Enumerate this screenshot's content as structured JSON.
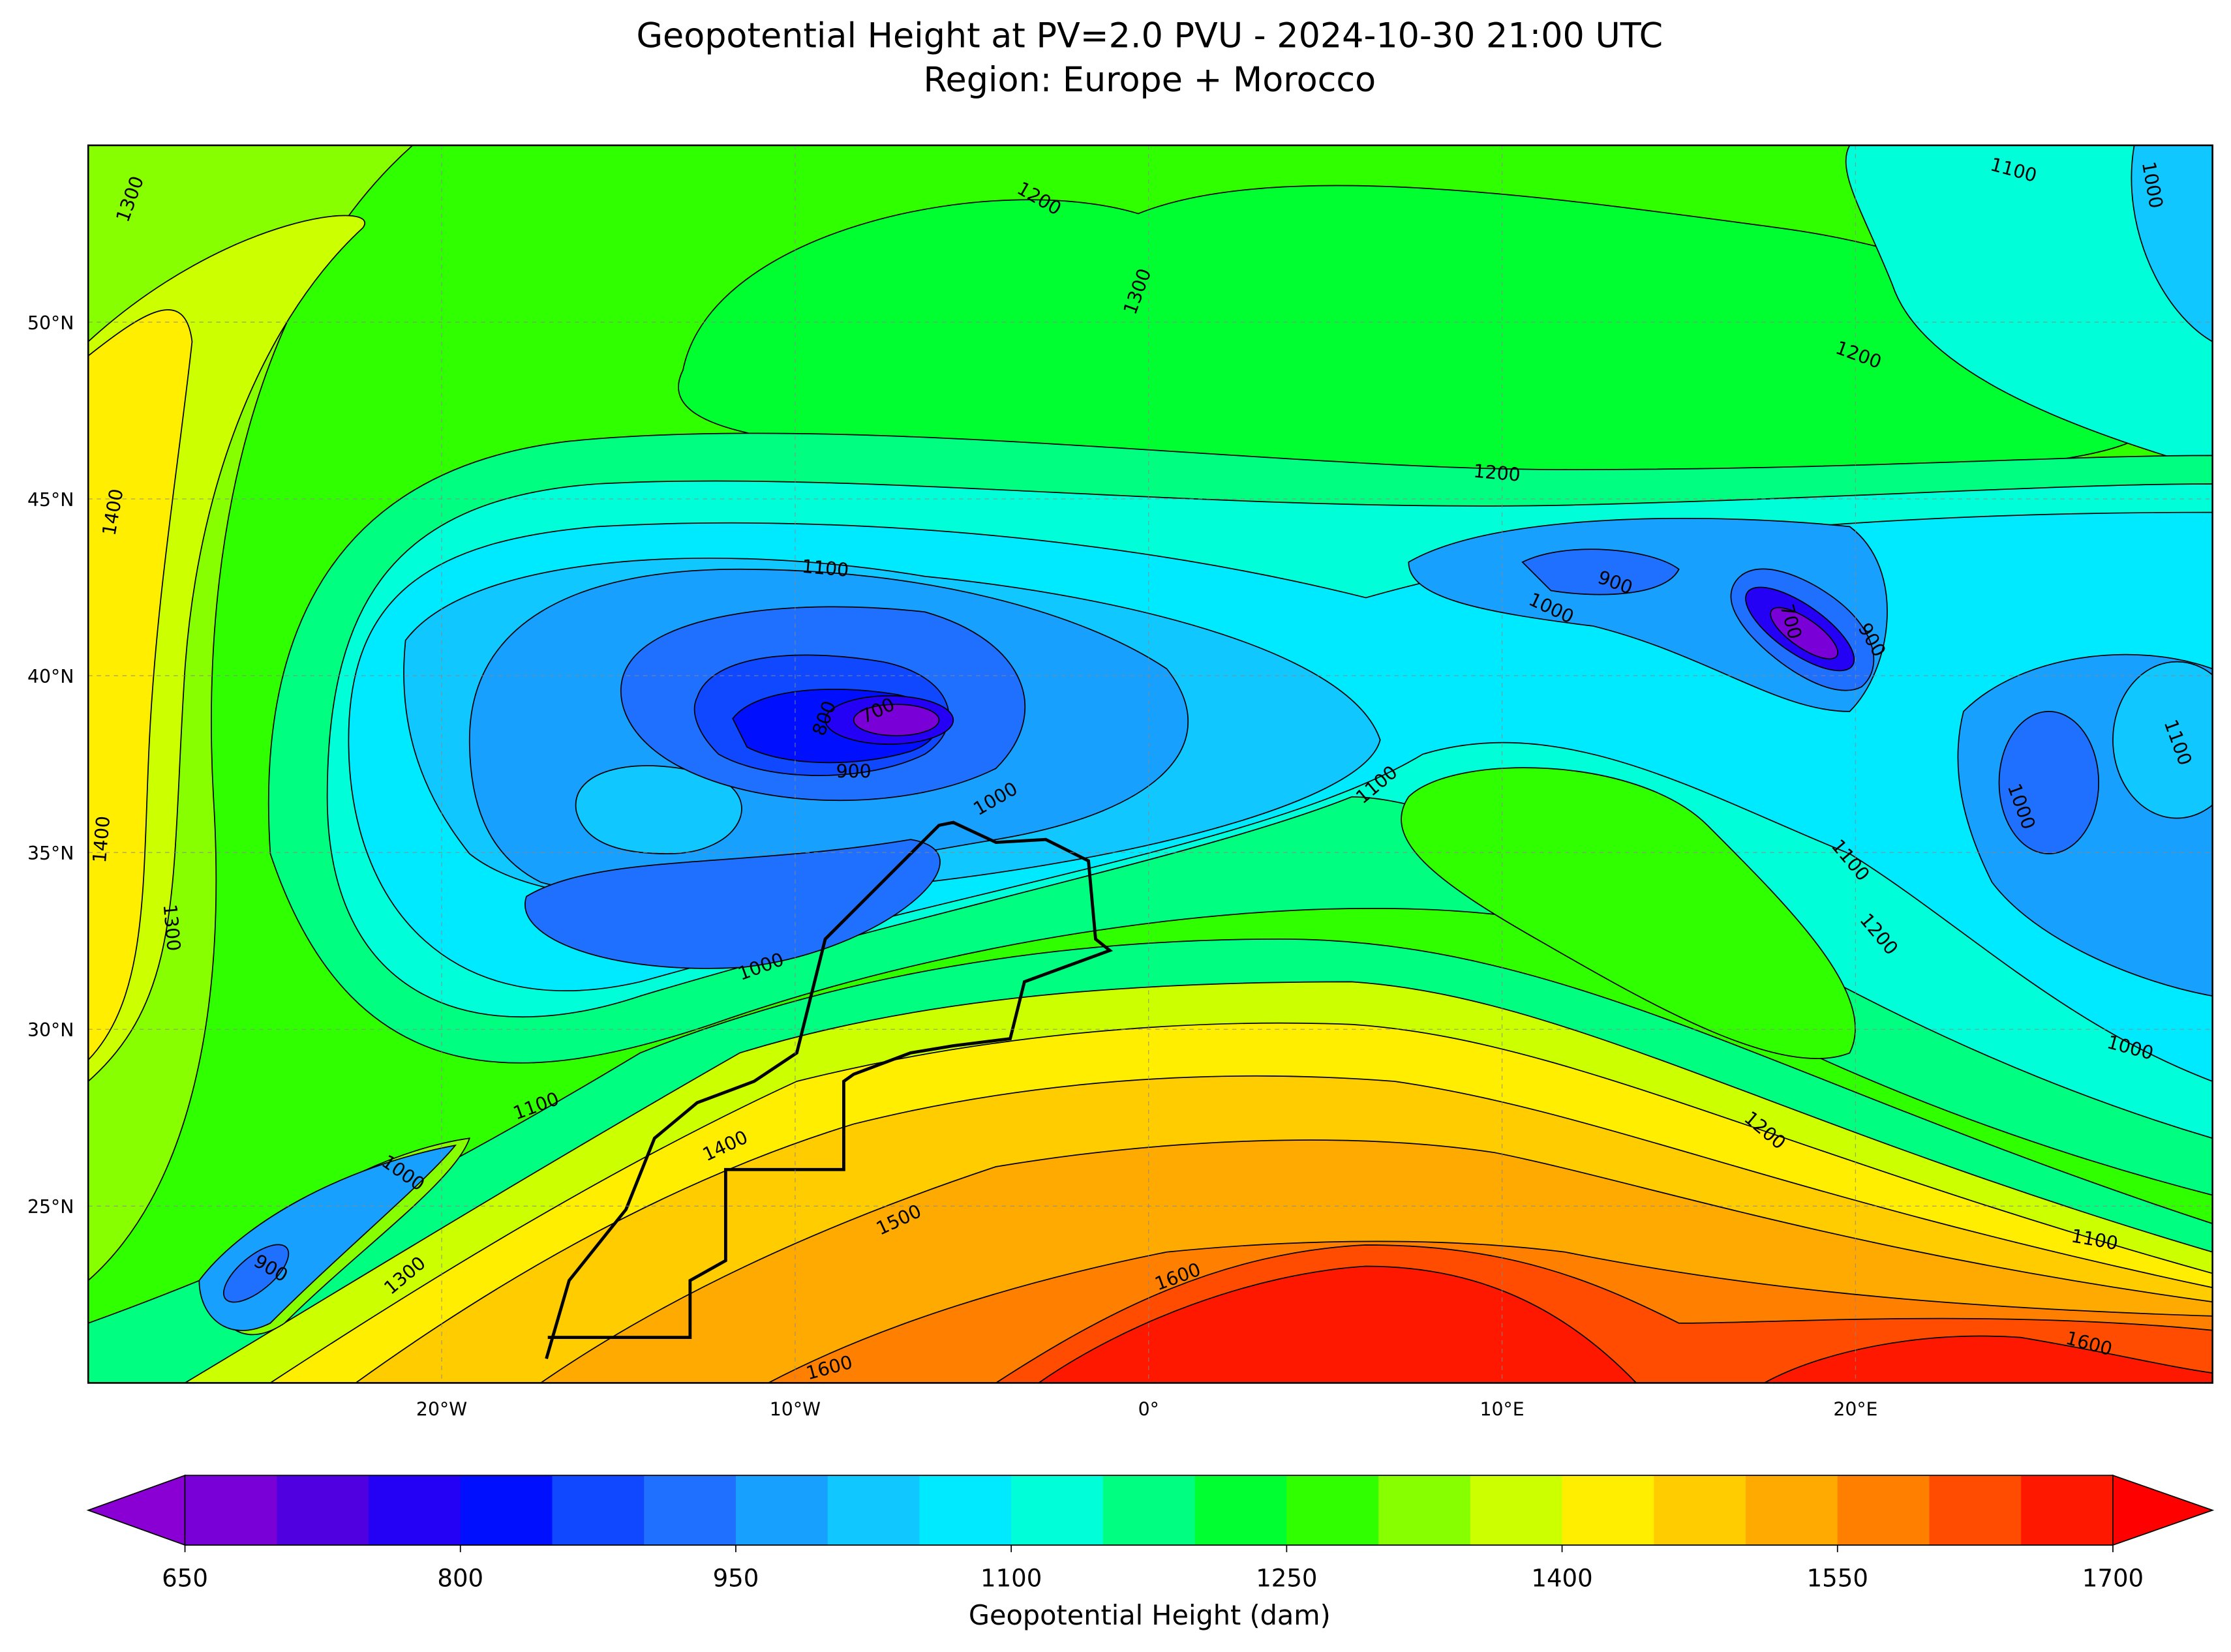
{
  "chart_data": {
    "type": "map",
    "title": "Geopotential Height at PV=2.0 PVU - 2024-10-30 21:00 UTC",
    "subtitle": "Region: Europe + Morocco",
    "xlim": [
      -30,
      30.1
    ],
    "ylim": [
      20,
      55
    ],
    "xticks": [
      {
        "value": -20,
        "label": "20°W"
      },
      {
        "value": -10,
        "label": "10°W"
      },
      {
        "value": 0,
        "label": "0°"
      },
      {
        "value": 10,
        "label": "10°E"
      },
      {
        "value": 20,
        "label": "20°E"
      }
    ],
    "yticks": [
      {
        "value": 25,
        "label": "25°N"
      },
      {
        "value": 30,
        "label": "30°N"
      },
      {
        "value": 35,
        "label": "35°N"
      },
      {
        "value": 40,
        "label": "40°N"
      },
      {
        "value": 45,
        "label": "45°N"
      },
      {
        "value": 50,
        "label": "50°N"
      }
    ],
    "grid": true,
    "contour_labels": [
      1300,
      1200,
      1300,
      1100,
      1000,
      1200,
      1200,
      1400,
      1100,
      900,
      1000,
      700,
      800,
      900,
      1000,
      1100,
      700,
      900,
      1100,
      1000,
      1400,
      1300,
      1100,
      1200,
      1000,
      1100,
      1000,
      1400,
      1200,
      1000,
      900,
      1300,
      1500,
      1600,
      1100,
      1600,
      1600
    ],
    "colorbar": {
      "label": "Geopotential Height (dam)",
      "lim": [
        650,
        1700
      ],
      "ticks": [
        650,
        800,
        950,
        1100,
        1250,
        1400,
        1550,
        1700
      ],
      "colors": [
        "#7a00d8",
        "#5000e0",
        "#2400f4",
        "#0010ff",
        "#1048ff",
        "#2070ff",
        "#18a0ff",
        "#10c8ff",
        "#00eaff",
        "#00ffd8",
        "#00ff80",
        "#00ff30",
        "#30ff00",
        "#88ff00",
        "#ccff00",
        "#ffee00",
        "#ffcc00",
        "#ffaa00",
        "#ff8000",
        "#ff4c00",
        "#ff1800"
      ],
      "under_color": "#8a00d4",
      "over_color": "#ff0000"
    }
  }
}
